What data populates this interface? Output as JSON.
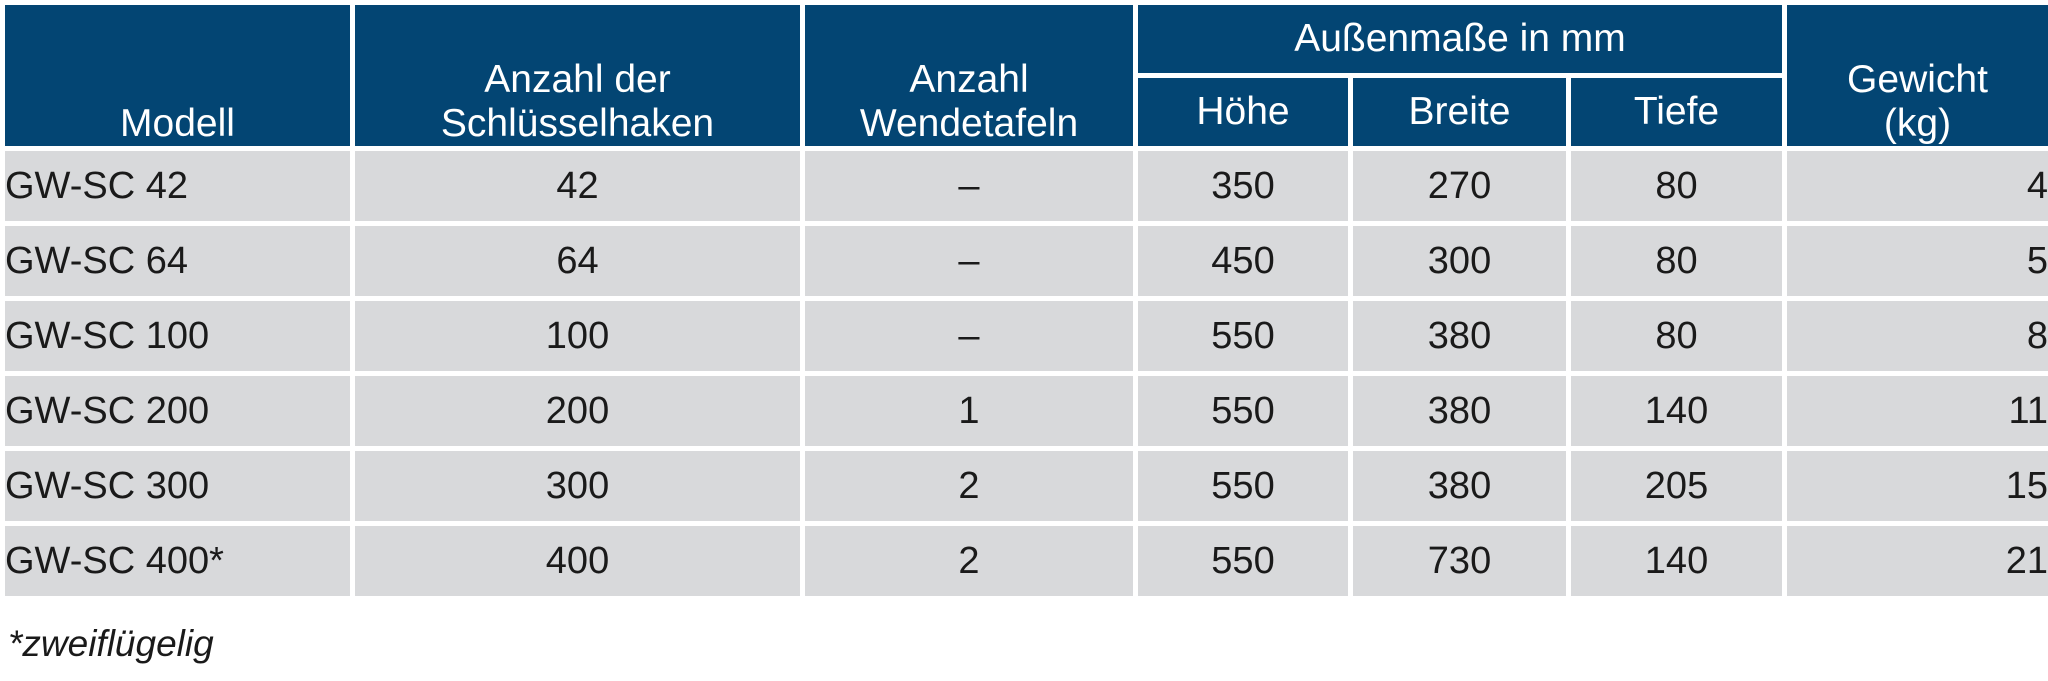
{
  "table": {
    "headers": {
      "modell": "Modell",
      "hooks_line1": "Anzahl der",
      "hooks_line2": "Schlüsselhaken",
      "panels_line1": "Anzahl",
      "panels_line2": "Wendetafeln",
      "dims_group": "Außenmaße in mm",
      "hoehe": "Höhe",
      "breite": "Breite",
      "tiefe": "Tiefe",
      "weight_line1": "Gewicht",
      "weight_line2": "(kg)"
    },
    "rows": [
      {
        "modell": "GW-SC 42",
        "hooks": "42",
        "panels": "–",
        "hoehe": "350",
        "breite": "270",
        "tiefe": "80",
        "gewicht": "4"
      },
      {
        "modell": "GW-SC 64",
        "hooks": "64",
        "panels": "–",
        "hoehe": "450",
        "breite": "300",
        "tiefe": "80",
        "gewicht": "5"
      },
      {
        "modell": "GW-SC 100",
        "hooks": "100",
        "panels": "–",
        "hoehe": "550",
        "breite": "380",
        "tiefe": "80",
        "gewicht": "8"
      },
      {
        "modell": "GW-SC 200",
        "hooks": "200",
        "panels": "1",
        "hoehe": "550",
        "breite": "380",
        "tiefe": "140",
        "gewicht": "11"
      },
      {
        "modell": "GW-SC 300",
        "hooks": "300",
        "panels": "2",
        "hoehe": "550",
        "breite": "380",
        "tiefe": "205",
        "gewicht": "15"
      },
      {
        "modell": "GW-SC 400*",
        "hooks": "400",
        "panels": "2",
        "hoehe": "550",
        "breite": "730",
        "tiefe": "140",
        "gewicht": "21"
      }
    ]
  },
  "footnote": "*zweiflügelig",
  "colors": {
    "header_bg": "#034573",
    "cell_bg": "#d8d9db",
    "grid": "#ffffff"
  }
}
